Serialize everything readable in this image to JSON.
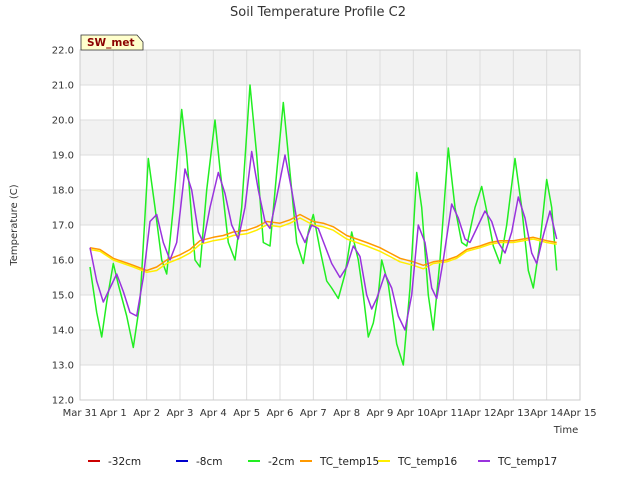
{
  "chart_data": {
    "type": "line",
    "title": "Soil Temperature Profile C2",
    "xlabel": "Time",
    "ylabel": "Temperature (C)",
    "badge": "SW_met",
    "ylim": [
      12.0,
      22.0
    ],
    "xlim": [
      0,
      15
    ],
    "y_ticks": [
      "12.0",
      "13.0",
      "14.0",
      "15.0",
      "16.0",
      "17.0",
      "18.0",
      "19.0",
      "20.0",
      "21.0",
      "22.0"
    ],
    "x_ticks": [
      "Mar 31",
      "Apr 1",
      "Apr 2",
      "Apr 3",
      "Apr 4",
      "Apr 5",
      "Apr 6",
      "Apr 7",
      "Apr 8",
      "Apr 9",
      "Apr 10",
      "Apr 11",
      "Apr 12",
      "Apr 13",
      "Apr 14",
      "Apr 15"
    ],
    "grid": true,
    "legend_position": "bottom",
    "series": [
      {
        "name": "-32cm",
        "color": "#cc0000",
        "values": []
      },
      {
        "name": "-8cm",
        "color": "#0000cc",
        "values": []
      },
      {
        "name": "-2cm",
        "color": "#22ee22",
        "values": [
          [
            0.3,
            15.8
          ],
          [
            0.5,
            14.5
          ],
          [
            0.65,
            13.8
          ],
          [
            0.8,
            14.8
          ],
          [
            1.0,
            15.9
          ],
          [
            1.15,
            15.3
          ],
          [
            1.4,
            14.4
          ],
          [
            1.6,
            13.5
          ],
          [
            1.8,
            14.8
          ],
          [
            2.05,
            18.9
          ],
          [
            2.25,
            17.5
          ],
          [
            2.45,
            16.0
          ],
          [
            2.6,
            15.6
          ],
          [
            2.8,
            17.5
          ],
          [
            3.05,
            20.3
          ],
          [
            3.2,
            19.0
          ],
          [
            3.45,
            16.0
          ],
          [
            3.6,
            15.8
          ],
          [
            3.8,
            18.0
          ],
          [
            4.05,
            20.0
          ],
          [
            4.2,
            18.6
          ],
          [
            4.45,
            16.5
          ],
          [
            4.65,
            16.0
          ],
          [
            4.85,
            17.5
          ],
          [
            5.1,
            21.0
          ],
          [
            5.3,
            19.0
          ],
          [
            5.5,
            16.5
          ],
          [
            5.7,
            16.4
          ],
          [
            5.9,
            18.5
          ],
          [
            6.1,
            20.5
          ],
          [
            6.3,
            18.5
          ],
          [
            6.5,
            16.5
          ],
          [
            6.7,
            15.9
          ],
          [
            6.85,
            16.8
          ],
          [
            7.0,
            17.3
          ],
          [
            7.2,
            16.3
          ],
          [
            7.4,
            15.4
          ],
          [
            7.55,
            15.2
          ],
          [
            7.75,
            14.9
          ],
          [
            7.95,
            15.6
          ],
          [
            8.15,
            16.8
          ],
          [
            8.35,
            16.0
          ],
          [
            8.5,
            15.0
          ],
          [
            8.65,
            13.8
          ],
          [
            8.8,
            14.2
          ],
          [
            8.95,
            15.0
          ],
          [
            9.05,
            16.0
          ],
          [
            9.25,
            15.3
          ],
          [
            9.5,
            13.6
          ],
          [
            9.7,
            13.0
          ],
          [
            9.9,
            15.2
          ],
          [
            10.1,
            18.5
          ],
          [
            10.25,
            17.5
          ],
          [
            10.45,
            15.0
          ],
          [
            10.6,
            14.0
          ],
          [
            10.8,
            16.0
          ],
          [
            11.05,
            19.2
          ],
          [
            11.25,
            17.5
          ],
          [
            11.45,
            16.5
          ],
          [
            11.6,
            16.4
          ],
          [
            11.85,
            17.5
          ],
          [
            12.05,
            18.1
          ],
          [
            12.2,
            17.4
          ],
          [
            12.4,
            16.4
          ],
          [
            12.6,
            15.9
          ],
          [
            12.8,
            17.0
          ],
          [
            13.05,
            18.9
          ],
          [
            13.25,
            17.5
          ],
          [
            13.45,
            15.7
          ],
          [
            13.6,
            15.2
          ],
          [
            13.8,
            16.5
          ],
          [
            14.0,
            18.3
          ],
          [
            14.15,
            17.5
          ],
          [
            14.3,
            15.7
          ]
        ]
      },
      {
        "name": "TC_temp15",
        "color": "#ff9900",
        "values": [
          [
            0.3,
            16.35
          ],
          [
            0.6,
            16.3
          ],
          [
            1.0,
            16.05
          ],
          [
            1.3,
            15.95
          ],
          [
            1.6,
            15.85
          ],
          [
            2.0,
            15.7
          ],
          [
            2.3,
            15.8
          ],
          [
            2.6,
            16.0
          ],
          [
            3.0,
            16.15
          ],
          [
            3.3,
            16.3
          ],
          [
            3.6,
            16.55
          ],
          [
            4.0,
            16.65
          ],
          [
            4.3,
            16.7
          ],
          [
            4.6,
            16.8
          ],
          [
            5.0,
            16.85
          ],
          [
            5.3,
            16.95
          ],
          [
            5.6,
            17.1
          ],
          [
            6.0,
            17.05
          ],
          [
            6.3,
            17.15
          ],
          [
            6.6,
            17.3
          ],
          [
            7.0,
            17.1
          ],
          [
            7.3,
            17.05
          ],
          [
            7.6,
            16.95
          ],
          [
            8.0,
            16.7
          ],
          [
            8.3,
            16.6
          ],
          [
            8.6,
            16.5
          ],
          [
            9.0,
            16.35
          ],
          [
            9.3,
            16.2
          ],
          [
            9.6,
            16.05
          ],
          [
            10.0,
            15.95
          ],
          [
            10.3,
            15.85
          ],
          [
            10.6,
            15.95
          ],
          [
            11.0,
            16.0
          ],
          [
            11.3,
            16.1
          ],
          [
            11.6,
            16.3
          ],
          [
            12.0,
            16.4
          ],
          [
            12.3,
            16.5
          ],
          [
            12.6,
            16.55
          ],
          [
            13.0,
            16.55
          ],
          [
            13.3,
            16.6
          ],
          [
            13.6,
            16.65
          ],
          [
            14.0,
            16.55
          ],
          [
            14.3,
            16.5
          ]
        ]
      },
      {
        "name": "TC_temp16",
        "color": "#ffee00",
        "values": [
          [
            0.3,
            16.3
          ],
          [
            0.6,
            16.25
          ],
          [
            1.0,
            16.0
          ],
          [
            1.3,
            15.9
          ],
          [
            1.6,
            15.8
          ],
          [
            2.0,
            15.65
          ],
          [
            2.3,
            15.7
          ],
          [
            2.6,
            15.9
          ],
          [
            3.0,
            16.05
          ],
          [
            3.3,
            16.2
          ],
          [
            3.6,
            16.45
          ],
          [
            4.0,
            16.55
          ],
          [
            4.3,
            16.6
          ],
          [
            4.6,
            16.7
          ],
          [
            5.0,
            16.75
          ],
          [
            5.3,
            16.85
          ],
          [
            5.6,
            17.0
          ],
          [
            6.0,
            16.95
          ],
          [
            6.3,
            17.05
          ],
          [
            6.6,
            17.2
          ],
          [
            7.0,
            17.0
          ],
          [
            7.3,
            16.95
          ],
          [
            7.6,
            16.85
          ],
          [
            8.0,
            16.6
          ],
          [
            8.3,
            16.5
          ],
          [
            8.6,
            16.4
          ],
          [
            9.0,
            16.25
          ],
          [
            9.3,
            16.1
          ],
          [
            9.6,
            15.95
          ],
          [
            10.0,
            15.85
          ],
          [
            10.3,
            15.75
          ],
          [
            10.6,
            15.9
          ],
          [
            11.0,
            15.95
          ],
          [
            11.3,
            16.05
          ],
          [
            11.6,
            16.25
          ],
          [
            12.0,
            16.35
          ],
          [
            12.3,
            16.45
          ],
          [
            12.6,
            16.5
          ],
          [
            13.0,
            16.5
          ],
          [
            13.3,
            16.55
          ],
          [
            13.6,
            16.6
          ],
          [
            14.0,
            16.5
          ],
          [
            14.3,
            16.45
          ]
        ]
      },
      {
        "name": "TC_temp17",
        "color": "#9933dd",
        "values": [
          [
            0.3,
            16.35
          ],
          [
            0.5,
            15.4
          ],
          [
            0.7,
            14.8
          ],
          [
            0.9,
            15.2
          ],
          [
            1.1,
            15.6
          ],
          [
            1.3,
            15.1
          ],
          [
            1.5,
            14.5
          ],
          [
            1.7,
            14.4
          ],
          [
            1.9,
            15.5
          ],
          [
            2.1,
            17.1
          ],
          [
            2.3,
            17.3
          ],
          [
            2.5,
            16.5
          ],
          [
            2.7,
            16.0
          ],
          [
            2.9,
            16.5
          ],
          [
            3.15,
            18.6
          ],
          [
            3.35,
            18.0
          ],
          [
            3.55,
            16.8
          ],
          [
            3.7,
            16.5
          ],
          [
            3.9,
            17.5
          ],
          [
            4.15,
            18.5
          ],
          [
            4.35,
            17.9
          ],
          [
            4.55,
            17.0
          ],
          [
            4.75,
            16.6
          ],
          [
            4.95,
            17.5
          ],
          [
            5.15,
            19.1
          ],
          [
            5.35,
            18.0
          ],
          [
            5.55,
            17.1
          ],
          [
            5.7,
            16.9
          ],
          [
            5.9,
            17.8
          ],
          [
            6.15,
            19.0
          ],
          [
            6.35,
            18.0
          ],
          [
            6.55,
            16.9
          ],
          [
            6.75,
            16.5
          ],
          [
            6.95,
            17.0
          ],
          [
            7.15,
            16.9
          ],
          [
            7.35,
            16.4
          ],
          [
            7.55,
            15.9
          ],
          [
            7.8,
            15.5
          ],
          [
            8.0,
            15.8
          ],
          [
            8.2,
            16.4
          ],
          [
            8.4,
            16.1
          ],
          [
            8.6,
            15.0
          ],
          [
            8.75,
            14.6
          ],
          [
            8.9,
            14.9
          ],
          [
            9.15,
            15.6
          ],
          [
            9.35,
            15.2
          ],
          [
            9.55,
            14.4
          ],
          [
            9.75,
            14.0
          ],
          [
            9.95,
            15.0
          ],
          [
            10.15,
            17.0
          ],
          [
            10.35,
            16.5
          ],
          [
            10.55,
            15.2
          ],
          [
            10.7,
            14.9
          ],
          [
            10.9,
            16.0
          ],
          [
            11.15,
            17.6
          ],
          [
            11.35,
            17.2
          ],
          [
            11.55,
            16.6
          ],
          [
            11.7,
            16.5
          ],
          [
            11.95,
            17.0
          ],
          [
            12.15,
            17.4
          ],
          [
            12.35,
            17.1
          ],
          [
            12.55,
            16.5
          ],
          [
            12.75,
            16.2
          ],
          [
            12.95,
            16.8
          ],
          [
            13.15,
            17.8
          ],
          [
            13.35,
            17.2
          ],
          [
            13.55,
            16.2
          ],
          [
            13.7,
            15.9
          ],
          [
            13.9,
            16.7
          ],
          [
            14.1,
            17.4
          ],
          [
            14.3,
            16.6
          ]
        ]
      }
    ]
  }
}
